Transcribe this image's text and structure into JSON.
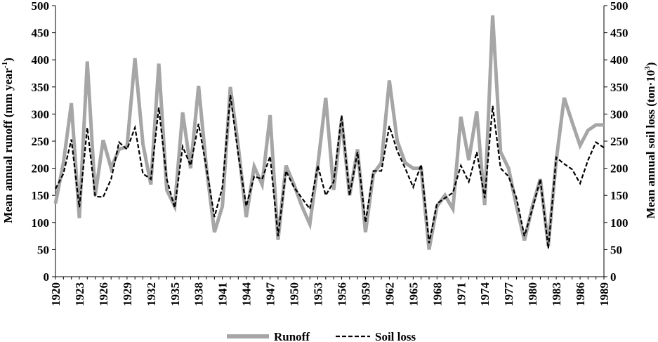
{
  "chart_data": {
    "type": "line",
    "x": [
      1920,
      1921,
      1922,
      1923,
      1924,
      1925,
      1926,
      1927,
      1928,
      1929,
      1930,
      1931,
      1932,
      1933,
      1934,
      1935,
      1936,
      1937,
      1938,
      1939,
      1940,
      1941,
      1942,
      1943,
      1944,
      1945,
      1946,
      1947,
      1948,
      1949,
      1950,
      1951,
      1952,
      1953,
      1954,
      1955,
      1956,
      1957,
      1958,
      1959,
      1960,
      1961,
      1962,
      1963,
      1964,
      1965,
      1966,
      1967,
      1968,
      1969,
      1970,
      1971,
      1972,
      1973,
      1974,
      1975,
      1976,
      1977,
      1978,
      1979,
      1980,
      1981,
      1982,
      1983,
      1984,
      1985,
      1986,
      1987,
      1988,
      1989
    ],
    "x_tick_labels": [
      "1920",
      "1923",
      "1926",
      "1929",
      "1932",
      "1935",
      "1938",
      "1941",
      "1944",
      "1947",
      "1950",
      "1953",
      "1956",
      "1959",
      "1962",
      "1965",
      "1968",
      "1971",
      "1974",
      "1977",
      "1980",
      "1983",
      "1986",
      "1989"
    ],
    "ylabel": "Mean annual runoff (mm year",
    "ylabel_sup": "-1",
    "ylabel_suffix": ")",
    "y2label": "Mean annual soil loss (ton·10",
    "y2label_sup": "3",
    "y2label_suffix": ")",
    "ylim": [
      0,
      500
    ],
    "y2lim": [
      0,
      500
    ],
    "y_ticks": [
      "0",
      "50",
      "100",
      "150",
      "200",
      "250",
      "300",
      "350",
      "400",
      "450",
      "500"
    ],
    "y2_ticks": [
      "0",
      "50",
      "100",
      "150",
      "200",
      "250",
      "300",
      "350",
      "400",
      "450",
      "500"
    ],
    "legend_position": "bottom",
    "series": [
      {
        "name": "Runoff",
        "axis": "left",
        "color": "#a6a6a6",
        "style": "solid",
        "values": [
          135,
          210,
          320,
          108,
          397,
          150,
          252,
          200,
          235,
          240,
          403,
          245,
          170,
          393,
          160,
          130,
          303,
          200,
          352,
          200,
          82,
          130,
          350,
          240,
          110,
          203,
          170,
          298,
          68,
          205,
          170,
          130,
          97,
          205,
          330,
          160,
          290,
          150,
          235,
          82,
          190,
          210,
          362,
          250,
          210,
          200,
          200,
          50,
          130,
          150,
          125,
          295,
          215,
          305,
          132,
          482,
          230,
          200,
          130,
          67,
          130,
          180,
          57,
          215,
          330,
          285,
          242,
          270,
          280,
          280
        ]
      },
      {
        "name": "Soil loss",
        "axis": "right",
        "color": "#000000",
        "style": "dashed",
        "values": [
          162,
          190,
          253,
          128,
          275,
          148,
          147,
          180,
          248,
          235,
          275,
          190,
          180,
          312,
          180,
          127,
          240,
          205,
          282,
          200,
          110,
          165,
          335,
          225,
          130,
          185,
          180,
          222,
          75,
          195,
          165,
          145,
          125,
          205,
          150,
          175,
          298,
          150,
          230,
          100,
          195,
          195,
          278,
          232,
          200,
          165,
          207,
          62,
          135,
          145,
          155,
          205,
          175,
          230,
          145,
          315,
          200,
          185,
          145,
          75,
          125,
          180,
          52,
          220,
          208,
          198,
          172,
          215,
          248,
          238
        ]
      }
    ]
  }
}
